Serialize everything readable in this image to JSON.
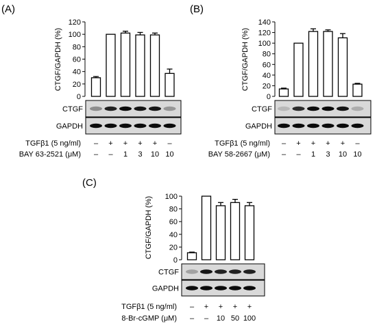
{
  "chart_data": [
    {
      "panel_label": "(A)",
      "type": "bar",
      "ylabel": "CTGF/GAPDH (%)",
      "ylim": [
        0,
        120
      ],
      "yticks": [
        0,
        20,
        40,
        60,
        80,
        100,
        120
      ],
      "values": [
        30,
        100,
        102,
        99,
        99,
        37
      ],
      "errors": [
        2,
        0,
        3,
        4,
        3,
        7
      ],
      "blot_labels": [
        "CTGF",
        "GAPDH"
      ],
      "blot_intensity": {
        "CTGF": [
          0.35,
          0.85,
          0.95,
          0.9,
          0.9,
          0.3
        ],
        "GAPDH": [
          0.95,
          0.95,
          0.95,
          0.95,
          0.95,
          0.95
        ]
      },
      "conditions": [
        {
          "label": "TGFβ1 (5 ng/ml)",
          "marks": [
            "–",
            "+",
            "+",
            "+",
            "+",
            "–"
          ]
        },
        {
          "label": "BAY 63-2521 (μM)",
          "marks": [
            "–",
            "–",
            "1",
            "3",
            "10",
            "10"
          ]
        }
      ]
    },
    {
      "panel_label": "(B)",
      "type": "bar",
      "ylabel": "CTGF/GAPDH (%)",
      "ylim": [
        0,
        140
      ],
      "yticks": [
        0,
        20,
        40,
        60,
        80,
        100,
        120,
        140
      ],
      "values": [
        14,
        100,
        122,
        122,
        110,
        23
      ],
      "errors": [
        1.5,
        0,
        5,
        3,
        8,
        1.5
      ],
      "blot_labels": [
        "CTGF",
        "GAPDH"
      ],
      "blot_intensity": {
        "CTGF": [
          0.15,
          0.8,
          0.95,
          0.95,
          0.9,
          0.2
        ],
        "GAPDH": [
          0.95,
          0.95,
          0.95,
          0.95,
          0.95,
          0.95
        ]
      },
      "conditions": [
        {
          "label": "TGFβ1 (5 ng/ml)",
          "marks": [
            "–",
            "+",
            "+",
            "+",
            "+",
            "–"
          ]
        },
        {
          "label": "BAY 58-2667 (μM)",
          "marks": [
            "–",
            "–",
            "1",
            "3",
            "10",
            "10"
          ]
        }
      ]
    },
    {
      "panel_label": "(C)",
      "type": "bar",
      "ylabel": "CTGF/GAPDH (%)",
      "ylim": [
        0,
        100
      ],
      "yticks": [
        0,
        20,
        40,
        60,
        80,
        100
      ],
      "values": [
        11,
        100,
        85,
        90,
        85
      ],
      "errors": [
        1,
        0,
        5,
        5,
        5
      ],
      "blot_labels": [
        "CTGF",
        "GAPDH"
      ],
      "blot_intensity": {
        "CTGF": [
          0.25,
          0.9,
          0.85,
          0.85,
          0.85
        ],
        "GAPDH": [
          0.95,
          0.95,
          0.95,
          0.95,
          0.95
        ]
      },
      "conditions": [
        {
          "label": "TGFβ1 (5 ng/ml)",
          "marks": [
            "–",
            "+",
            "+",
            "+",
            "+"
          ]
        },
        {
          "label": "8-Br-cGMP (μM)",
          "marks": [
            "–",
            "–",
            "10",
            "50",
            "100"
          ]
        }
      ]
    }
  ]
}
